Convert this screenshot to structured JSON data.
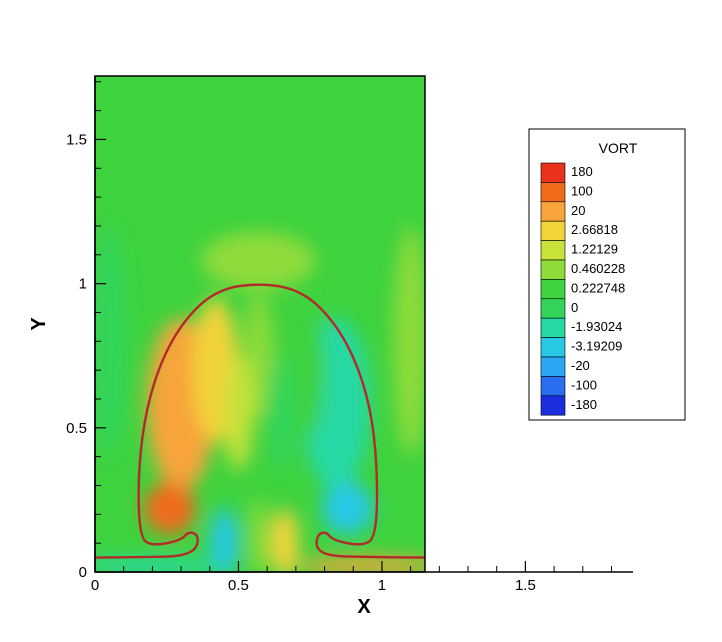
{
  "chart_data": {
    "type": "heatmap",
    "title": "",
    "variable": "VORT",
    "xlabel": "X",
    "ylabel": "Y",
    "xlim": [
      0,
      1.875
    ],
    "ylim": [
      0,
      1.72
    ],
    "domain_x": [
      0,
      1.15
    ],
    "xticks": [
      "0",
      "0.5",
      "1",
      "1.5"
    ],
    "yticks": [
      "0",
      "0.5",
      "1",
      "1.5"
    ],
    "xtick_values": [
      0,
      0.5,
      1,
      1.5
    ],
    "ytick_values": [
      0,
      0.5,
      1,
      1.5
    ],
    "grid": false,
    "legend_position": "right",
    "legend": {
      "title": "VORT",
      "levels": [
        "180",
        "100",
        "20",
        "2.66818",
        "1.22129",
        "0.460228",
        "0.222748",
        "0",
        "-1.93024",
        "-3.19209",
        "-20",
        "-100",
        "-180"
      ],
      "colors": [
        "#e8321c",
        "#f06a1a",
        "#f7a43a",
        "#f2d33a",
        "#c8e23a",
        "#8fdb3a",
        "#3ed23e",
        "#33d45a",
        "#25d8a4",
        "#26c8e4",
        "#2aa6f2",
        "#2a6ef0",
        "#1a2ee0"
      ]
    },
    "field": {
      "background_value": "0.222748",
      "interface_color": "#b22a2a",
      "interface_points": [
        [
          0.0,
          0.05
        ],
        [
          0.2,
          0.052
        ],
        [
          0.3,
          0.055
        ],
        [
          0.355,
          0.08
        ],
        [
          0.36,
          0.13
        ],
        [
          0.325,
          0.14
        ],
        [
          0.3,
          0.11
        ],
        [
          0.2,
          0.09
        ],
        [
          0.155,
          0.12
        ],
        [
          0.15,
          0.35
        ],
        [
          0.18,
          0.58
        ],
        [
          0.25,
          0.78
        ],
        [
          0.35,
          0.92
        ],
        [
          0.45,
          0.985
        ],
        [
          0.57,
          1.0
        ],
        [
          0.69,
          0.985
        ],
        [
          0.79,
          0.92
        ],
        [
          0.89,
          0.78
        ],
        [
          0.96,
          0.58
        ],
        [
          0.985,
          0.35
        ],
        [
          0.98,
          0.12
        ],
        [
          0.93,
          0.09
        ],
        [
          0.83,
          0.11
        ],
        [
          0.805,
          0.14
        ],
        [
          0.775,
          0.13
        ],
        [
          0.77,
          0.08
        ],
        [
          0.82,
          0.055
        ],
        [
          0.95,
          0.052
        ],
        [
          1.15,
          0.05
        ]
      ]
    }
  }
}
